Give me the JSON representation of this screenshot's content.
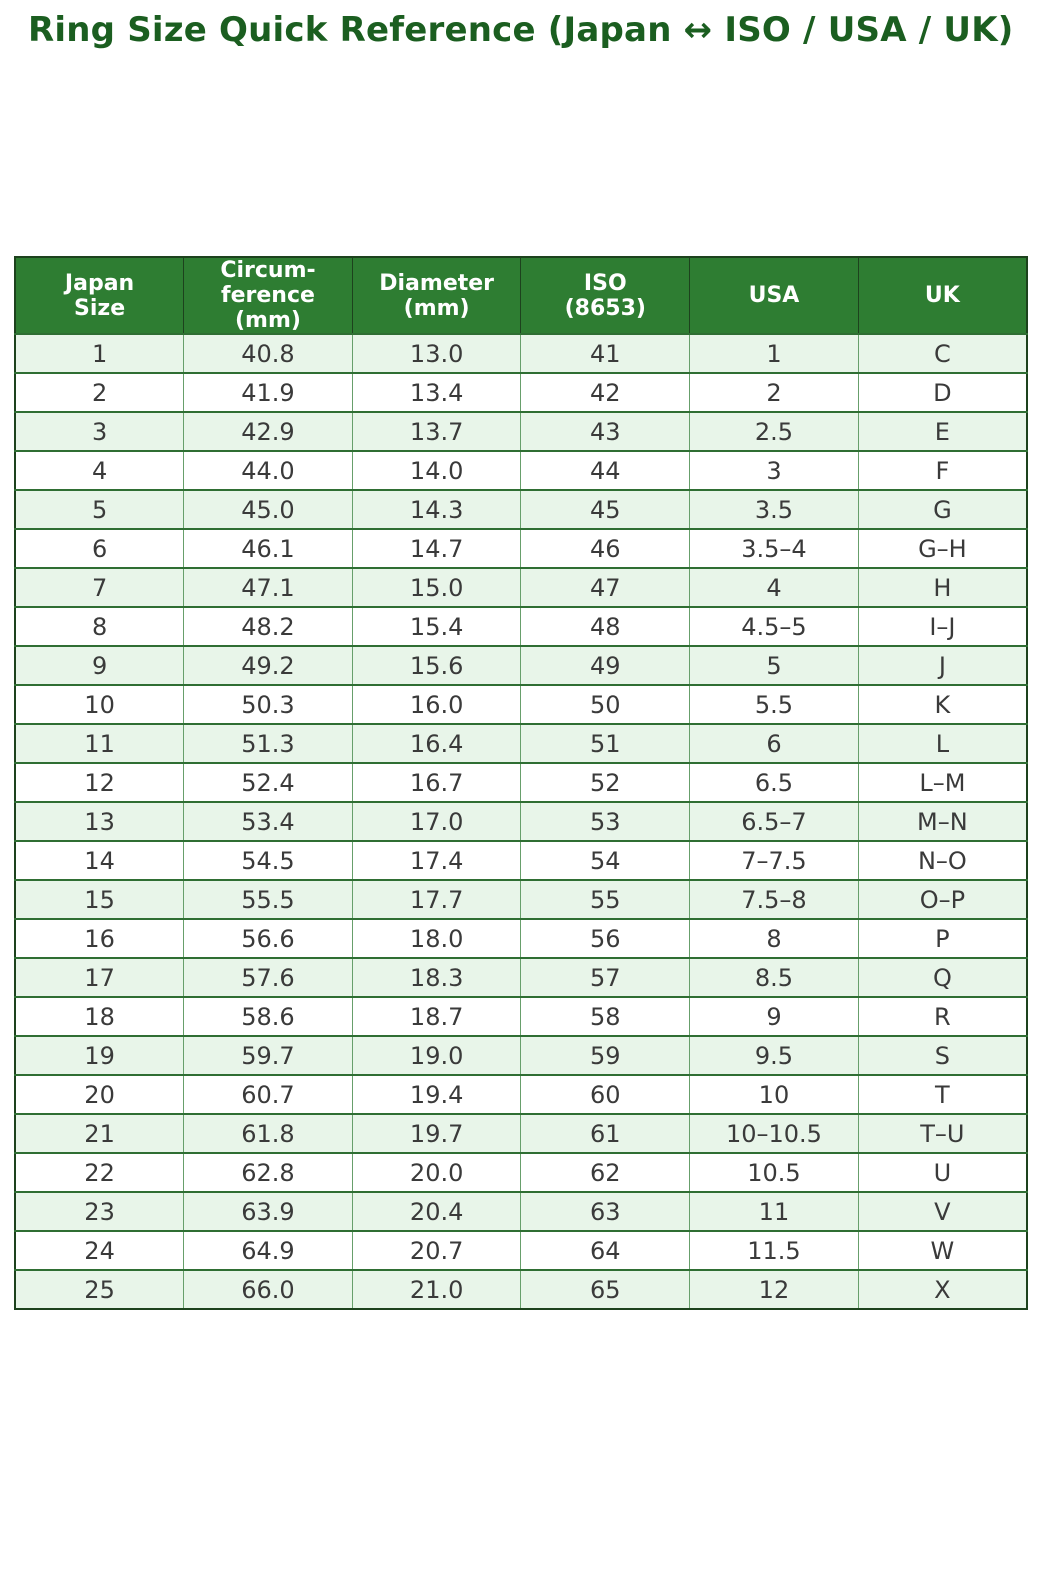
{
  "chart_data": {
    "type": "table",
    "title": "Ring Size Quick Reference (Japan ↔ ISO / USA / UK)",
    "columns": [
      "Japan\nSize",
      "Circum-\nference\n(mm)",
      "Diameter\n(mm)",
      "ISO\n(8653)",
      "USA",
      "UK"
    ],
    "rows": [
      [
        "1",
        "40.8",
        "13.0",
        "41",
        "1",
        "C"
      ],
      [
        "2",
        "41.9",
        "13.4",
        "42",
        "2",
        "D"
      ],
      [
        "3",
        "42.9",
        "13.7",
        "43",
        "2.5",
        "E"
      ],
      [
        "4",
        "44.0",
        "14.0",
        "44",
        "3",
        "F"
      ],
      [
        "5",
        "45.0",
        "14.3",
        "45",
        "3.5",
        "G"
      ],
      [
        "6",
        "46.1",
        "14.7",
        "46",
        "3.5–4",
        "G–H"
      ],
      [
        "7",
        "47.1",
        "15.0",
        "47",
        "4",
        "H"
      ],
      [
        "8",
        "48.2",
        "15.4",
        "48",
        "4.5–5",
        "I–J"
      ],
      [
        "9",
        "49.2",
        "15.6",
        "49",
        "5",
        "J"
      ],
      [
        "10",
        "50.3",
        "16.0",
        "50",
        "5.5",
        "K"
      ],
      [
        "11",
        "51.3",
        "16.4",
        "51",
        "6",
        "L"
      ],
      [
        "12",
        "52.4",
        "16.7",
        "52",
        "6.5",
        "L–M"
      ],
      [
        "13",
        "53.4",
        "17.0",
        "53",
        "6.5–7",
        "M–N"
      ],
      [
        "14",
        "54.5",
        "17.4",
        "54",
        "7–7.5",
        "N–O"
      ],
      [
        "15",
        "55.5",
        "17.7",
        "55",
        "7.5–8",
        "O–P"
      ],
      [
        "16",
        "56.6",
        "18.0",
        "56",
        "8",
        "P"
      ],
      [
        "17",
        "57.6",
        "18.3",
        "57",
        "8.5",
        "Q"
      ],
      [
        "18",
        "58.6",
        "18.7",
        "58",
        "9",
        "R"
      ],
      [
        "19",
        "59.7",
        "19.0",
        "59",
        "9.5",
        "S"
      ],
      [
        "20",
        "60.7",
        "19.4",
        "60",
        "10",
        "T"
      ],
      [
        "21",
        "61.8",
        "19.7",
        "61",
        "10–10.5",
        "T–U"
      ],
      [
        "22",
        "62.8",
        "20.0",
        "62",
        "10.5",
        "U"
      ],
      [
        "23",
        "63.9",
        "20.4",
        "63",
        "11",
        "V"
      ],
      [
        "24",
        "64.9",
        "20.7",
        "64",
        "11.5",
        "W"
      ],
      [
        "25",
        "66.0",
        "21.0",
        "65",
        "12",
        "X"
      ]
    ],
    "layout": {
      "striped": true,
      "header_position": "top",
      "grid": true
    }
  },
  "colors": {
    "title": "#1b5e20",
    "header_bg": "#2e7d32",
    "header_text": "#ffffff",
    "row_alt_bg": "#e8f5e9",
    "row_bg": "#ffffff",
    "cell_text": "#3a3a3a",
    "border_strong": "#2f6e33",
    "border_light": "#679f6b",
    "border_outer": "#1d421d"
  }
}
